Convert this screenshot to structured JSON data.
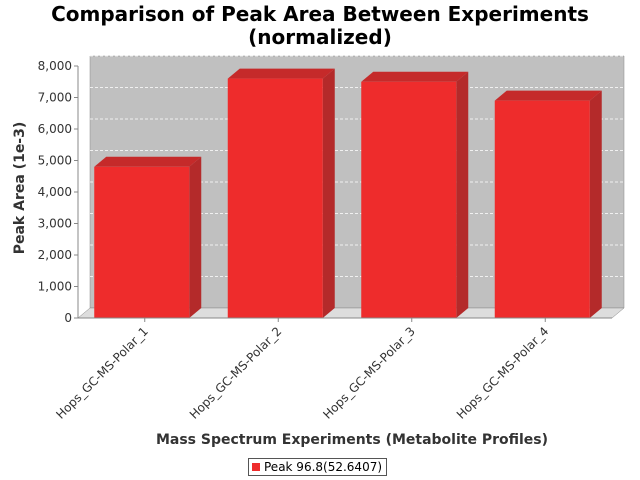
{
  "chart_data": {
    "type": "bar",
    "title": "Comparison of Peak Area Between Experiments",
    "subtitle": "(normalized)",
    "xlabel": "Mass Spectrum Experiments (Metabolite Profiles)",
    "ylabel": "Peak Area (1e-3)",
    "ylim": [
      0,
      8000
    ],
    "yticks": [
      "0",
      "1,000",
      "2,000",
      "3,000",
      "4,000",
      "5,000",
      "6,000",
      "7,000",
      "8,000"
    ],
    "categories": [
      "Hops_GC-MS-Polar_1",
      "Hops_GC-MS-Polar_2",
      "Hops_GC-MS-Polar_3",
      "Hops_GC-MS-Polar_4"
    ],
    "series": [
      {
        "name": "Peak 96.8(52.6407)",
        "values": [
          4800,
          7600,
          7500,
          6900
        ]
      }
    ],
    "grid": true,
    "legend_position": "bottom-center",
    "bar_color": "#ee2c2c",
    "plot_background": "#c0c0c0"
  }
}
